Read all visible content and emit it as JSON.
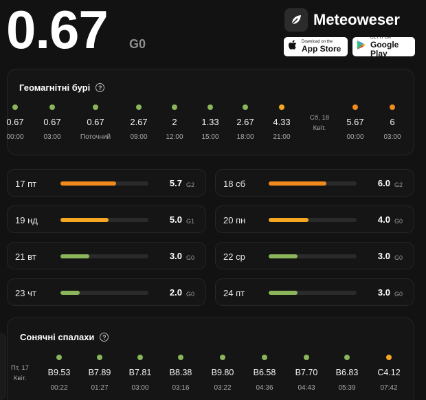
{
  "header": {
    "kp_value": "0.67",
    "kp_level": "G0",
    "brand": "Meteoweser",
    "app_store_small": "Download on the",
    "app_store_large": "App Store",
    "google_play_small": "GET IT ON",
    "google_play_large": "Google Play"
  },
  "geomagnetic": {
    "title": "Геомагнітні бурі",
    "timeline": [
      {
        "value": "0.67",
        "time": "00:00",
        "color": "#8ab55a"
      },
      {
        "value": "0.67",
        "time": "03:00",
        "color": "#8ab55a"
      },
      {
        "value": "0.67",
        "time": "Поточний",
        "color": "#8ab55a"
      },
      {
        "value": "2.67",
        "time": "09:00",
        "color": "#8ab55a"
      },
      {
        "value": "2",
        "time": "12:00",
        "color": "#8ab55a"
      },
      {
        "value": "1.33",
        "time": "15:00",
        "color": "#8ab55a"
      },
      {
        "value": "2.67",
        "time": "18:00",
        "color": "#8ab55a"
      },
      {
        "value": "4.33",
        "time": "21:00",
        "color": "#f5a623"
      },
      {
        "value": "5.67",
        "time": "00:00",
        "color": "#f08a1c"
      },
      {
        "value": "6",
        "time": "03:00",
        "color": "#f08a1c"
      }
    ],
    "date_divider": [
      "Сб, 18",
      "Квіт."
    ]
  },
  "forecast": [
    {
      "day": "17 пт",
      "value": "5.7",
      "level": "G2",
      "fraction": 0.63,
      "color": "#f08a1c"
    },
    {
      "day": "18 сб",
      "value": "6.0",
      "level": "G2",
      "fraction": 0.66,
      "color": "#f08a1c"
    },
    {
      "day": "19 нд",
      "value": "5.0",
      "level": "G1",
      "fraction": 0.55,
      "color": "#f5a623"
    },
    {
      "day": "20 пн",
      "value": "4.0",
      "level": "G0",
      "fraction": 0.45,
      "color": "#f5a623"
    },
    {
      "day": "21 вт",
      "value": "3.0",
      "level": "G0",
      "fraction": 0.33,
      "color": "#8ab55a"
    },
    {
      "day": "22 ср",
      "value": "3.0",
      "level": "G0",
      "fraction": 0.33,
      "color": "#8ab55a"
    },
    {
      "day": "23 чт",
      "value": "2.0",
      "level": "G0",
      "fraction": 0.22,
      "color": "#8ab55a"
    },
    {
      "day": "24 пт",
      "value": "3.0",
      "level": "G0",
      "fraction": 0.33,
      "color": "#8ab55a"
    }
  ],
  "flares": {
    "title": "Сонячні спалахи",
    "date_label": [
      "Пт, 17",
      "Квіт."
    ],
    "items": [
      {
        "value": "B9.53",
        "time": "00:22",
        "color": "#8ab55a"
      },
      {
        "value": "B7.89",
        "time": "01:27",
        "color": "#8ab55a"
      },
      {
        "value": "B7.81",
        "time": "03:00",
        "color": "#8ab55a"
      },
      {
        "value": "B8.38",
        "time": "03:16",
        "color": "#8ab55a"
      },
      {
        "value": "B9.80",
        "time": "03:22",
        "color": "#8ab55a"
      },
      {
        "value": "B6.58",
        "time": "04:36",
        "color": "#8ab55a"
      },
      {
        "value": "B7.70",
        "time": "04:43",
        "color": "#8ab55a"
      },
      {
        "value": "B6.83",
        "time": "05:39",
        "color": "#8ab55a"
      },
      {
        "value": "C4.12",
        "time": "07:42",
        "color": "#f5a623"
      }
    ]
  }
}
